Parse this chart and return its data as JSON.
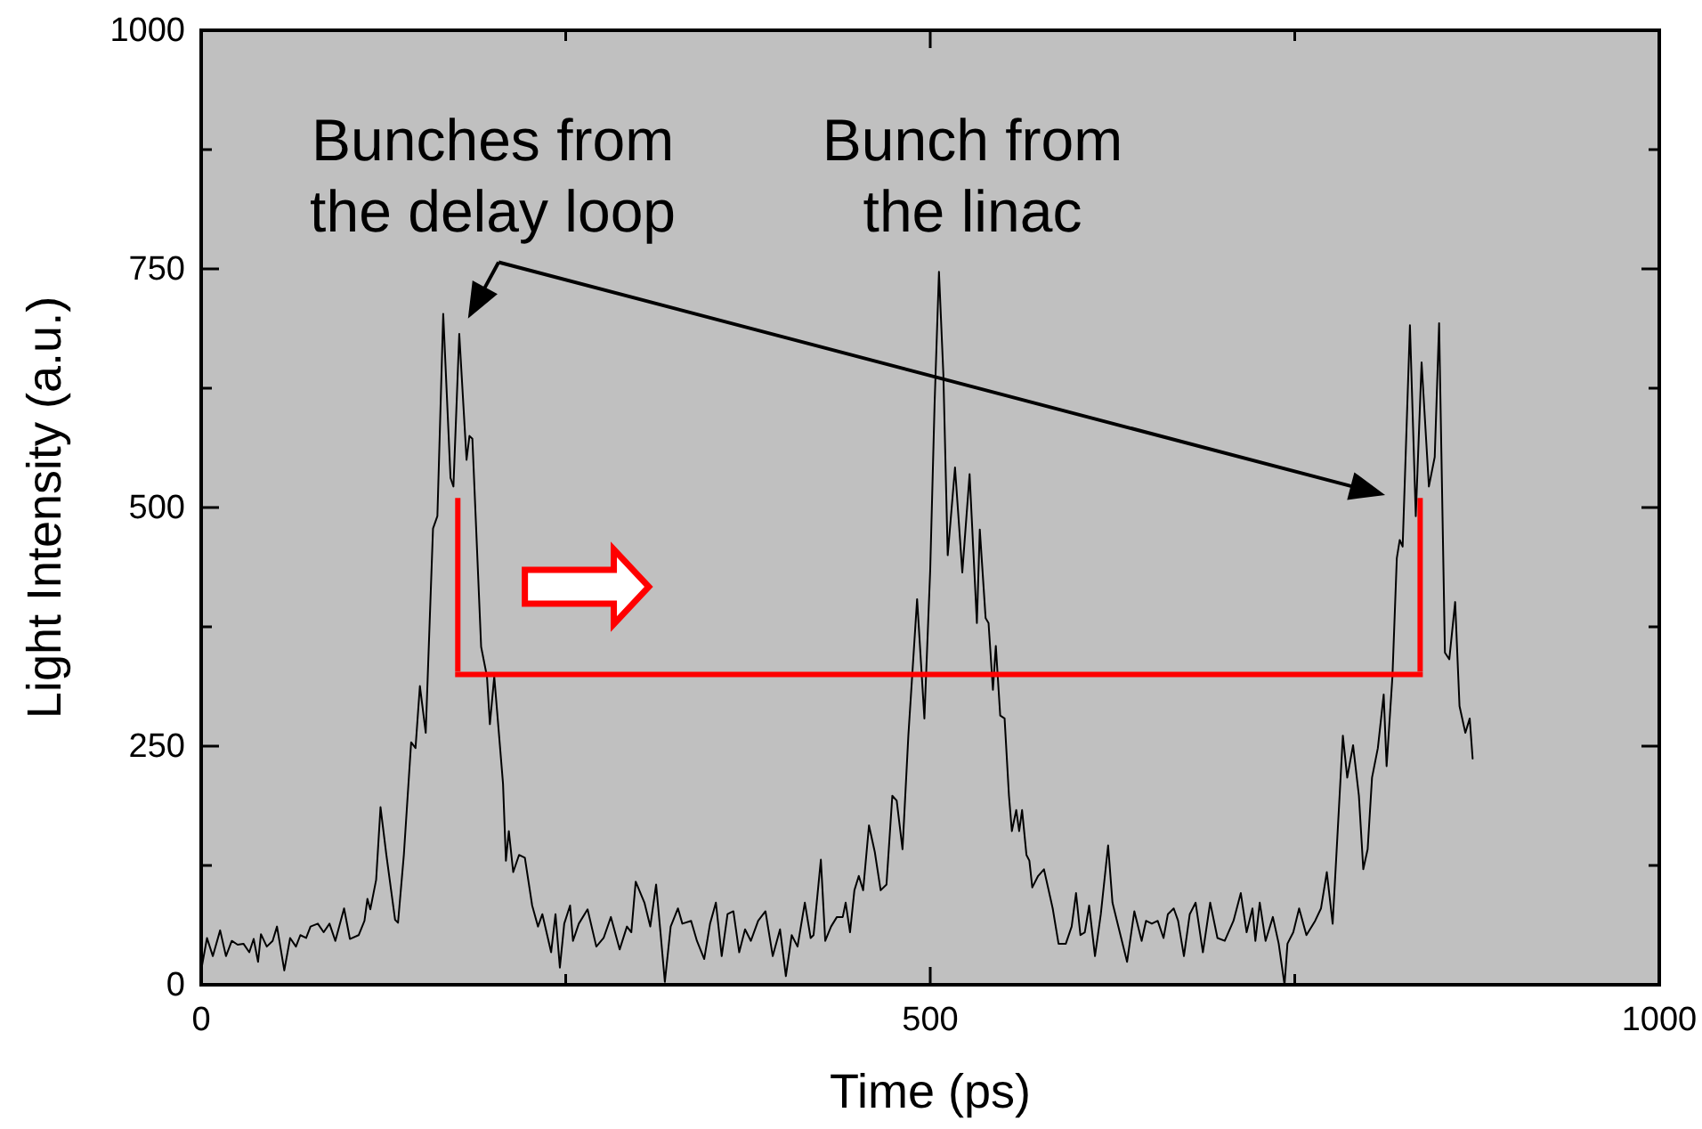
{
  "chart_data": {
    "type": "line",
    "xlabel": "Time (ps)",
    "ylabel": "Light Intensity (a.u.)",
    "annotations": [
      "Bunches from\nthe delay loop",
      "Bunch from\nthe linac"
    ],
    "xlim": [
      0,
      1000
    ],
    "xticks": [
      0,
      {
        "value": 250,
        "label": null
      },
      500,
      {
        "value": 750,
        "label": null
      },
      1000
    ],
    "ylim": [
      0,
      1000
    ],
    "yticks": [
      0,
      {
        "value": 125,
        "label": null
      },
      250,
      {
        "value": 375,
        "label": null
      },
      500,
      {
        "value": 625,
        "label": null
      },
      750,
      {
        "value": 875,
        "label": null
      },
      1000
    ],
    "x": [
      0,
      4,
      8,
      13,
      17,
      21,
      25,
      29,
      33,
      36,
      39,
      41,
      45,
      49,
      52,
      57,
      61,
      65,
      68,
      72,
      75,
      80,
      84,
      88,
      92,
      98,
      102,
      108,
      112,
      114,
      116,
      120,
      123,
      127,
      133,
      135,
      139,
      144,
      147,
      150,
      154,
      159,
      162,
      166,
      171,
      173,
      177,
      182,
      184,
      186,
      192,
      196,
      198,
      201,
      207,
      209,
      211,
      214,
      218,
      222,
      227,
      231,
      234,
      240,
      243,
      246,
      249,
      253,
      255,
      259,
      265,
      271,
      276,
      281,
      287,
      292,
      295,
      298,
      304,
      308,
      312,
      315,
      318,
      322,
      327,
      330,
      336,
      340,
      345,
      349,
      353,
      357,
      361,
      365,
      369,
      373,
      377,
      382,
      387,
      392,
      397,
      401,
      405,
      409,
      414,
      418,
      420,
      425,
      428,
      432,
      436,
      440,
      442,
      445,
      448,
      451,
      454,
      458,
      462,
      466,
      470,
      474,
      477,
      481,
      485,
      491,
      496,
      500,
      503,
      506,
      509,
      512,
      517,
      522,
      527,
      532,
      534,
      538,
      540,
      543,
      545,
      548,
      551,
      554,
      556,
      559,
      561,
      563,
      566,
      568,
      570,
      574,
      578,
      584,
      588,
      593,
      597,
      600,
      603,
      606,
      609,
      613,
      617,
      622,
      625,
      629,
      635,
      640,
      645,
      648,
      652,
      656,
      660,
      663,
      667,
      670,
      674,
      678,
      682,
      687,
      692,
      697,
      702,
      708,
      713,
      717,
      721,
      723,
      726,
      730,
      735,
      739,
      743,
      745,
      749,
      753,
      758,
      764,
      768,
      772,
      776,
      783,
      786,
      790,
      794,
      797,
      800,
      803,
      807,
      811,
      813,
      817,
      820,
      822,
      824,
      829,
      833,
      837,
      842,
      846,
      849,
      853,
      856,
      860,
      863,
      867,
      870,
      872
    ],
    "series": [
      {
        "color": "#000000",
        "values": [
          15,
          49,
          30,
          57,
          30,
          46,
          42,
          43,
          34,
          48,
          24,
          53,
          40,
          46,
          61,
          15,
          49,
          40,
          52,
          49,
          61,
          64,
          55,
          64,
          46,
          80,
          48,
          52,
          67,
          90,
          79,
          110,
          186,
          136,
          68,
          65,
          136,
          254,
          248,
          313,
          264,
          478,
          491,
          703,
          531,
          522,
          682,
          550,
          575,
          572,
          354,
          323,
          273,
          323,
          211,
          130,
          161,
          118,
          136,
          133,
          83,
          61,
          74,
          34,
          74,
          18,
          64,
          83,
          46,
          64,
          79,
          40,
          49,
          71,
          37,
          61,
          55,
          108,
          86,
          61,
          105,
          55,
          3,
          61,
          80,
          64,
          67,
          46,
          27,
          64,
          86,
          30,
          74,
          77,
          34,
          58,
          46,
          67,
          77,
          30,
          58,
          9,
          52,
          40,
          86,
          49,
          52,
          131,
          46,
          61,
          71,
          71,
          86,
          55,
          99,
          114,
          99,
          167,
          139,
          99,
          105,
          198,
          193,
          142,
          261,
          404,
          279,
          435,
          609,
          747,
          640,
          450,
          542,
          432,
          535,
          379,
          477,
          384,
          379,
          309,
          355,
          282,
          279,
          198,
          161,
          183,
          161,
          183,
          136,
          130,
          102,
          114,
          121,
          80,
          43,
          43,
          61,
          96,
          52,
          55,
          83,
          30,
          74,
          146,
          86,
          61,
          24,
          77,
          46,
          67,
          64,
          67,
          49,
          74,
          80,
          67,
          30,
          74,
          86,
          34,
          86,
          49,
          46,
          67,
          96,
          55,
          80,
          46,
          86,
          46,
          71,
          43,
          0,
          43,
          55,
          80,
          52,
          67,
          80,
          118,
          64,
          261,
          217,
          251,
          198,
          121,
          142,
          217,
          248,
          304,
          229,
          323,
          447,
          466,
          459,
          691,
          491,
          652,
          522,
          553,
          693,
          348,
          341,
          401,
          292,
          264,
          279,
          237
        ]
      },
      {
        "type": "line",
        "color": "#ff0000",
        "x": [
          176,
          836
        ],
        "values": [
          325,
          325
        ]
      }
    ]
  }
}
